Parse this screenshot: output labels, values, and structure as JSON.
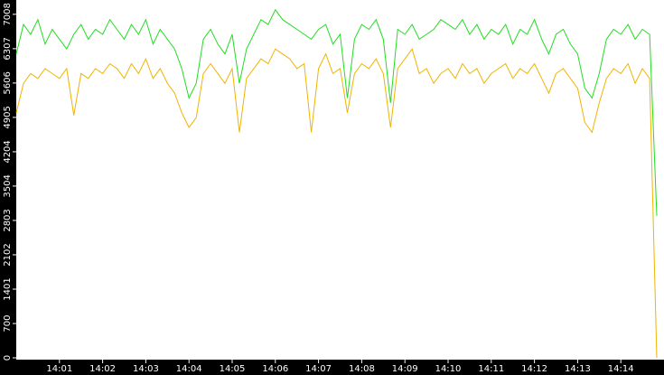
{
  "chart_data": {
    "type": "line",
    "categories": [
      null,
      null,
      null,
      null,
      null,
      null,
      "14:01",
      null,
      null,
      null,
      null,
      null,
      "14:02",
      null,
      null,
      null,
      null,
      null,
      "14:03",
      null,
      null,
      null,
      null,
      null,
      "14:04",
      null,
      null,
      null,
      null,
      null,
      "14:05",
      null,
      null,
      null,
      null,
      null,
      "14:06",
      null,
      null,
      null,
      null,
      null,
      "14:07",
      null,
      null,
      null,
      null,
      null,
      "14:08",
      null,
      null,
      null,
      null,
      null,
      "14:09",
      null,
      null,
      null,
      null,
      null,
      "14:10",
      null,
      null,
      null,
      null,
      null,
      "14:11",
      null,
      null,
      null,
      null,
      null,
      "14:12",
      null,
      null,
      null,
      null,
      null,
      "14:13",
      null,
      null,
      null,
      null,
      null,
      "14:14",
      null,
      null,
      null,
      null,
      null
    ],
    "series": [
      {
        "color": "#22dd22",
        "values": [
          6200,
          6800,
          6600,
          6900,
          6400,
          6700,
          6500,
          6300,
          6600,
          6800,
          6500,
          6700,
          6600,
          6900,
          6700,
          6500,
          6800,
          6600,
          6900,
          6400,
          6700,
          6500,
          6300,
          5900,
          5300,
          5600,
          6500,
          6700,
          6400,
          6200,
          6600,
          5600,
          6300,
          6600,
          6900,
          6800,
          7100,
          6900,
          6800,
          6700,
          6600,
          6500,
          6700,
          6800,
          6400,
          6600,
          5300,
          6500,
          6800,
          6700,
          6900,
          6500,
          5200,
          6700,
          6600,
          6800,
          6500,
          6600,
          6700,
          6900,
          6800,
          6700,
          6900,
          6600,
          6800,
          6500,
          6700,
          6600,
          6800,
          6400,
          6700,
          6600,
          6900,
          6500,
          6200,
          6600,
          6700,
          6400,
          6200,
          5500,
          5300,
          5800,
          6500,
          6700,
          6600,
          6800,
          6500,
          6700,
          6600,
          2900
        ]
      },
      {
        "color": "#f0b400",
        "values": [
          5000,
          5600,
          5800,
          5700,
          5900,
          5800,
          5700,
          5900,
          4950,
          5800,
          5700,
          5900,
          5800,
          6000,
          5900,
          5700,
          6000,
          5800,
          6100,
          5700,
          5900,
          5600,
          5400,
          5000,
          4700,
          4900,
          5800,
          6000,
          5800,
          5600,
          5900,
          4600,
          5700,
          5900,
          6100,
          6000,
          6300,
          6200,
          6100,
          5900,
          6000,
          4600,
          5900,
          6200,
          5800,
          5900,
          5000,
          5800,
          6000,
          5900,
          6100,
          5800,
          4700,
          5900,
          6100,
          6300,
          5800,
          5900,
          5600,
          5800,
          5900,
          5700,
          6000,
          5800,
          5900,
          5600,
          5800,
          5900,
          6000,
          5700,
          5900,
          5800,
          6000,
          5700,
          5400,
          5800,
          5900,
          5700,
          5500,
          4800,
          4600,
          5200,
          5700,
          5900,
          5800,
          6000,
          5600,
          5900,
          5700,
          0
        ]
      }
    ],
    "ylim": [
      0,
      7300
    ],
    "yticks": [
      0,
      700,
      1401,
      2102,
      2803,
      3504,
      4204,
      4905,
      5606,
      6307,
      7008
    ]
  }
}
